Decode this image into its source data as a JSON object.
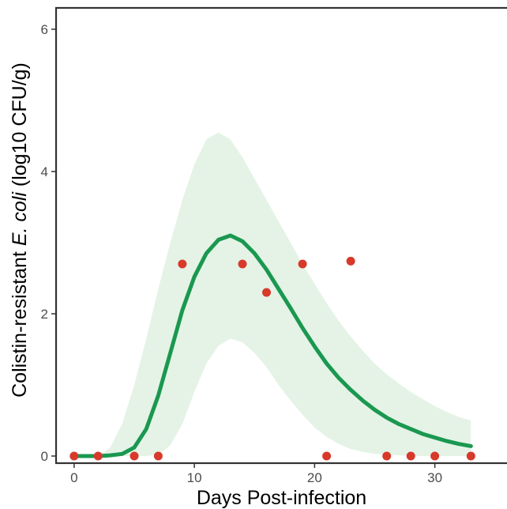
{
  "chart_data": {
    "type": "line",
    "xlabel": "Days Post-infection",
    "ylabel": {
      "prefix": "Colistin-resistant ",
      "italic": "E. coli",
      "suffix": " (log10 CFU/g)"
    },
    "xlim": [
      -1.5,
      36
    ],
    "ylim": [
      -0.1,
      6.3
    ],
    "x_ticks": [
      0,
      10,
      20,
      30
    ],
    "y_ticks": [
      0,
      2,
      4,
      6
    ],
    "grid": false,
    "legend": "none",
    "series": [
      {
        "kind": "model-fit",
        "color": "#1a9850",
        "x": [
          0,
          1,
          2,
          3,
          4,
          5,
          6,
          7,
          8,
          9,
          10,
          11,
          12,
          13,
          14,
          15,
          16,
          17,
          18,
          19,
          20,
          21,
          22,
          23,
          24,
          25,
          26,
          27,
          28,
          29,
          30,
          31,
          32,
          33
        ],
        "y": [
          0,
          0,
          0,
          0.01,
          0.03,
          0.12,
          0.38,
          0.85,
          1.45,
          2.05,
          2.52,
          2.85,
          3.04,
          3.1,
          3.02,
          2.85,
          2.62,
          2.35,
          2.08,
          1.8,
          1.54,
          1.3,
          1.1,
          0.93,
          0.78,
          0.65,
          0.54,
          0.45,
          0.38,
          0.31,
          0.26,
          0.21,
          0.17,
          0.14
        ]
      },
      {
        "kind": "confidence-band",
        "color": "#e4f3e6",
        "x": [
          0,
          1,
          2,
          3,
          4,
          5,
          6,
          7,
          8,
          9,
          10,
          11,
          12,
          13,
          14,
          15,
          16,
          17,
          18,
          19,
          20,
          21,
          22,
          23,
          24,
          25,
          26,
          27,
          28,
          29,
          30,
          31,
          32,
          33
        ],
        "upper": [
          0,
          0,
          0,
          0.12,
          0.45,
          1.0,
          1.65,
          2.35,
          3.0,
          3.6,
          4.1,
          4.45,
          4.55,
          4.45,
          4.2,
          3.9,
          3.6,
          3.3,
          3.0,
          2.7,
          2.42,
          2.15,
          1.9,
          1.68,
          1.48,
          1.3,
          1.15,
          1.02,
          0.9,
          0.8,
          0.7,
          0.62,
          0.55,
          0.5
        ],
        "lower": [
          0,
          0,
          0,
          0,
          0,
          0,
          0,
          0.02,
          0.15,
          0.45,
          0.9,
          1.3,
          1.55,
          1.65,
          1.6,
          1.45,
          1.25,
          1.0,
          0.78,
          0.58,
          0.4,
          0.27,
          0.17,
          0.1,
          0.06,
          0.03,
          0.02,
          0.01,
          0,
          0,
          0,
          0,
          0,
          0
        ]
      },
      {
        "kind": "observed-points",
        "color": "#d7392b",
        "x": [
          0,
          2,
          5,
          7,
          9,
          14,
          16,
          19,
          21,
          23,
          26,
          28,
          30,
          33
        ],
        "y": [
          0,
          0,
          0,
          0,
          2.7,
          2.7,
          2.3,
          2.7,
          0,
          2.74,
          0,
          0,
          0,
          0
        ]
      }
    ]
  }
}
